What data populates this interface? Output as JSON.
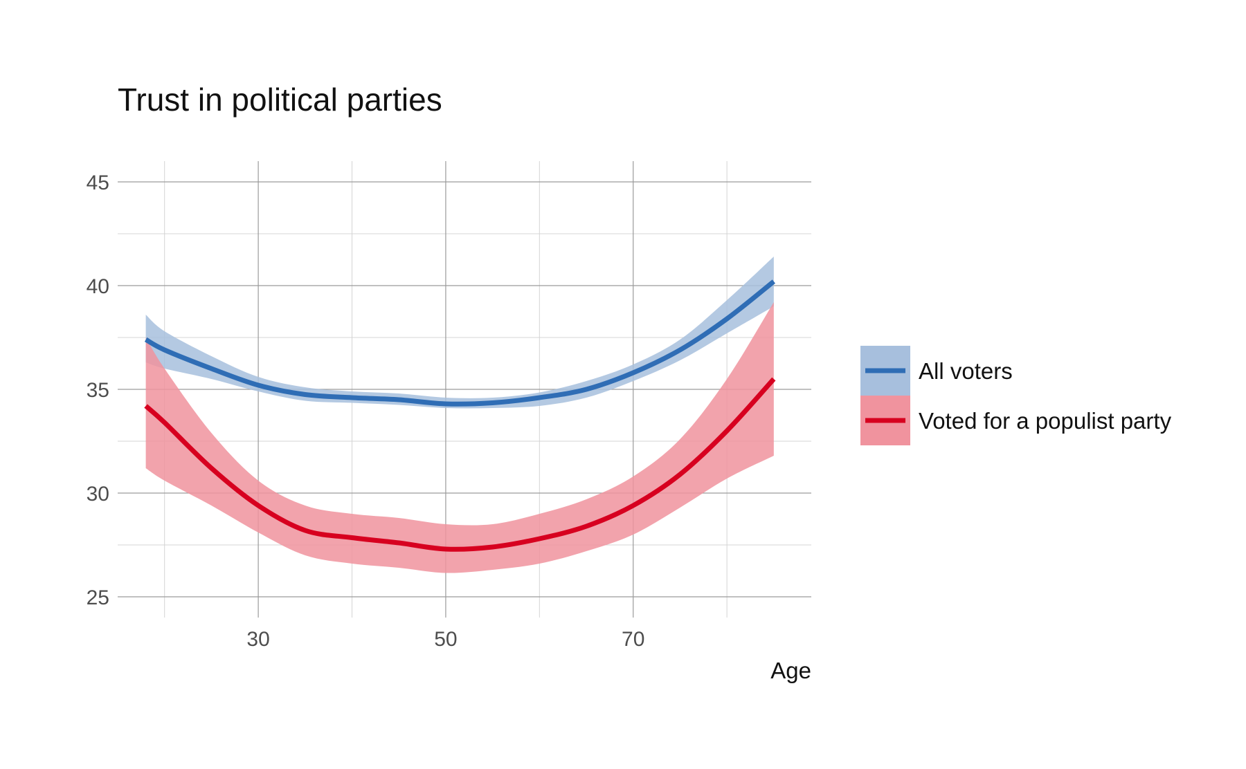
{
  "chart_data": {
    "type": "line",
    "title": "Trust in political parties",
    "xlabel": "Age",
    "ylabel": "",
    "xlim": [
      15,
      89
    ],
    "ylim": [
      24,
      46
    ],
    "x_ticks": [
      30,
      50,
      70
    ],
    "x_minor_ticks": [
      20,
      40,
      60,
      80
    ],
    "y_ticks": [
      25,
      30,
      35,
      40,
      45
    ],
    "y_minor_ticks": [
      27.5,
      32.5,
      37.5,
      42.5
    ],
    "grid": true,
    "legend_position": "right",
    "series": [
      {
        "name": "All voters",
        "color": "#2f6db5",
        "band_color": "#a7bfdd",
        "x": [
          18,
          20,
          25,
          30,
          35,
          40,
          45,
          50,
          55,
          60,
          65,
          70,
          75,
          80,
          85
        ],
        "y": [
          37.4,
          36.9,
          36.0,
          35.2,
          34.75,
          34.6,
          34.5,
          34.3,
          34.35,
          34.6,
          35.0,
          35.8,
          36.9,
          38.4,
          40.2
        ],
        "lower": [
          36.3,
          36.0,
          35.5,
          34.9,
          34.45,
          34.35,
          34.25,
          34.1,
          34.1,
          34.2,
          34.6,
          35.4,
          36.4,
          37.7,
          39.0
        ],
        "upper": [
          38.6,
          37.8,
          36.6,
          35.6,
          35.1,
          34.9,
          34.8,
          34.6,
          34.6,
          34.85,
          35.4,
          36.2,
          37.4,
          39.3,
          41.4
        ]
      },
      {
        "name": "Voted for a populist party",
        "color": "#d7001f",
        "band_color": "#f0939e",
        "x": [
          18,
          20,
          25,
          30,
          35,
          40,
          45,
          50,
          55,
          60,
          65,
          70,
          75,
          80,
          85
        ],
        "y": [
          34.2,
          33.4,
          31.2,
          29.4,
          28.2,
          27.85,
          27.6,
          27.3,
          27.4,
          27.8,
          28.4,
          29.4,
          30.9,
          33.0,
          35.5
        ],
        "lower": [
          31.2,
          30.6,
          29.4,
          28.1,
          27.0,
          26.6,
          26.4,
          26.15,
          26.3,
          26.6,
          27.2,
          28.0,
          29.3,
          30.7,
          31.8
        ],
        "upper": [
          37.5,
          36.0,
          32.9,
          30.6,
          29.4,
          29.0,
          28.8,
          28.5,
          28.5,
          29.0,
          29.7,
          30.8,
          32.6,
          35.5,
          39.2
        ]
      }
    ]
  }
}
